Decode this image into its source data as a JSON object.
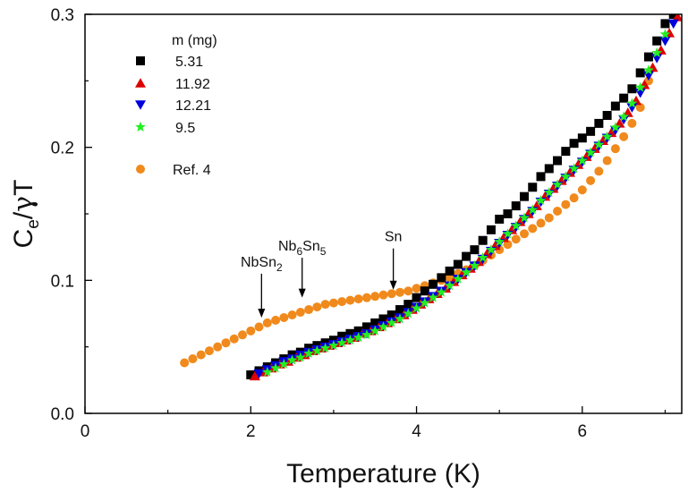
{
  "chart_data": {
    "type": "scatter",
    "xlabel": "Temperature (K)",
    "ylabel": {
      "main": "C",
      "sub": "e",
      "slash": "/",
      "greek": "γ",
      "tail": "T"
    },
    "xlim": [
      0,
      7.2
    ],
    "ylim": [
      0,
      0.3
    ],
    "xticks": [
      0,
      2,
      4,
      6
    ],
    "xtick_labels": [
      "0",
      "2",
      "4",
      "6"
    ],
    "yticks": [
      0,
      0.1,
      0.2,
      0.3
    ],
    "ytick_labels": [
      "0.0",
      "0.1",
      "0.2",
      "0.3"
    ],
    "grid": false,
    "legend_title": "m (mg)",
    "legend_placement": "top-left",
    "series": [
      {
        "name": "5.31",
        "marker": "square",
        "color": "#000000",
        "x": [
          2.0,
          2.1,
          2.2,
          2.3,
          2.4,
          2.5,
          2.6,
          2.7,
          2.8,
          2.9,
          3.0,
          3.1,
          3.2,
          3.3,
          3.4,
          3.5,
          3.6,
          3.7,
          3.8,
          3.9,
          4.0,
          4.1,
          4.2,
          4.3,
          4.4,
          4.5,
          4.6,
          4.7,
          4.8,
          4.9,
          5.0,
          5.1,
          5.2,
          5.3,
          5.4,
          5.5,
          5.6,
          5.7,
          5.8,
          5.9,
          6.0,
          6.1,
          6.2,
          6.3,
          6.4,
          6.5,
          6.6,
          6.7,
          6.8,
          6.9,
          7.0,
          7.1
        ],
        "y": [
          0.029,
          0.032,
          0.035,
          0.038,
          0.041,
          0.044,
          0.046,
          0.049,
          0.051,
          0.053,
          0.055,
          0.058,
          0.06,
          0.062,
          0.065,
          0.068,
          0.071,
          0.074,
          0.078,
          0.082,
          0.087,
          0.092,
          0.097,
          0.102,
          0.107,
          0.112,
          0.118,
          0.123,
          0.13,
          0.138,
          0.146,
          0.15,
          0.156,
          0.163,
          0.17,
          0.178,
          0.184,
          0.19,
          0.197,
          0.203,
          0.207,
          0.212,
          0.218,
          0.224,
          0.231,
          0.237,
          0.244,
          0.256,
          0.268,
          0.28,
          0.293,
          0.3
        ]
      },
      {
        "name": "11.92",
        "marker": "triangle-up",
        "color": "#dd0000",
        "x": [
          2.05,
          2.15,
          2.25,
          2.35,
          2.45,
          2.55,
          2.65,
          2.75,
          2.85,
          2.95,
          3.05,
          3.15,
          3.25,
          3.35,
          3.45,
          3.55,
          3.65,
          3.75,
          3.85,
          3.95,
          4.05,
          4.15,
          4.25,
          4.35,
          4.45,
          4.55,
          4.65,
          4.75,
          4.85,
          4.95,
          5.05,
          5.15,
          5.25,
          5.35,
          5.45,
          5.55,
          5.65,
          5.75,
          5.85,
          5.95,
          6.05,
          6.15,
          6.25,
          6.35,
          6.45,
          6.55,
          6.65,
          6.75,
          6.85,
          6.95,
          7.05,
          7.15
        ],
        "y": [
          0.028,
          0.031,
          0.034,
          0.037,
          0.039,
          0.042,
          0.044,
          0.047,
          0.049,
          0.051,
          0.053,
          0.055,
          0.057,
          0.06,
          0.062,
          0.065,
          0.068,
          0.071,
          0.074,
          0.078,
          0.082,
          0.086,
          0.09,
          0.094,
          0.099,
          0.104,
          0.109,
          0.114,
          0.12,
          0.126,
          0.132,
          0.138,
          0.144,
          0.15,
          0.156,
          0.163,
          0.169,
          0.175,
          0.181,
          0.187,
          0.193,
          0.199,
          0.205,
          0.211,
          0.218,
          0.226,
          0.235,
          0.247,
          0.26,
          0.273,
          0.286,
          0.298
        ]
      },
      {
        "name": "12.21",
        "marker": "triangle-down",
        "color": "#0000dd",
        "x": [
          2.1,
          2.2,
          2.3,
          2.4,
          2.5,
          2.6,
          2.7,
          2.8,
          2.9,
          3.0,
          3.1,
          3.2,
          3.3,
          3.4,
          3.5,
          3.6,
          3.7,
          3.8,
          3.9,
          4.0,
          4.1,
          4.2,
          4.3,
          4.4,
          4.5,
          4.6,
          4.7,
          4.8,
          4.9,
          5.0,
          5.1,
          5.2,
          5.3,
          5.4,
          5.5,
          5.6,
          5.7,
          5.8,
          5.9,
          6.0,
          6.1,
          6.2,
          6.3,
          6.4,
          6.5,
          6.6,
          6.7,
          6.8,
          6.9,
          7.0,
          7.1
        ],
        "y": [
          0.03,
          0.033,
          0.036,
          0.039,
          0.041,
          0.044,
          0.046,
          0.048,
          0.05,
          0.052,
          0.054,
          0.056,
          0.058,
          0.06,
          0.063,
          0.066,
          0.069,
          0.072,
          0.076,
          0.08,
          0.084,
          0.088,
          0.092,
          0.096,
          0.101,
          0.106,
          0.111,
          0.116,
          0.122,
          0.128,
          0.134,
          0.14,
          0.146,
          0.152,
          0.159,
          0.165,
          0.171,
          0.177,
          0.183,
          0.189,
          0.195,
          0.201,
          0.207,
          0.213,
          0.221,
          0.23,
          0.241,
          0.254,
          0.267,
          0.28,
          0.293
        ]
      },
      {
        "name": "9.5",
        "marker": "star",
        "color": "#22ee22",
        "x": [
          2.2,
          2.3,
          2.4,
          2.5,
          2.6,
          2.7,
          2.8,
          2.9,
          3.0,
          3.1,
          3.2,
          3.3,
          3.4,
          3.5,
          3.6,
          3.7,
          3.8,
          3.9,
          4.0,
          4.1,
          4.2,
          4.3,
          4.4,
          4.5,
          4.6,
          4.7,
          4.8,
          4.9,
          5.0,
          5.1,
          5.2,
          5.3,
          5.4,
          5.5,
          5.6,
          5.7,
          5.8,
          5.9,
          6.0,
          6.1,
          6.2,
          6.3,
          6.4,
          6.5,
          6.6,
          6.7,
          6.8,
          6.9,
          7.0
        ],
        "y": [
          0.031,
          0.034,
          0.037,
          0.04,
          0.042,
          0.045,
          0.047,
          0.049,
          0.051,
          0.053,
          0.055,
          0.057,
          0.059,
          0.062,
          0.065,
          0.068,
          0.071,
          0.075,
          0.079,
          0.083,
          0.087,
          0.091,
          0.096,
          0.101,
          0.106,
          0.111,
          0.117,
          0.123,
          0.129,
          0.135,
          0.141,
          0.147,
          0.153,
          0.16,
          0.166,
          0.172,
          0.178,
          0.184,
          0.19,
          0.196,
          0.202,
          0.208,
          0.215,
          0.223,
          0.233,
          0.245,
          0.258,
          0.271,
          0.285
        ]
      },
      {
        "name": "Ref. 4",
        "marker": "circle",
        "color": "#f08a1c",
        "x": [
          1.2,
          1.3,
          1.4,
          1.5,
          1.6,
          1.7,
          1.8,
          1.9,
          2.0,
          2.1,
          2.2,
          2.3,
          2.4,
          2.5,
          2.6,
          2.7,
          2.8,
          2.9,
          3.0,
          3.1,
          3.2,
          3.3,
          3.4,
          3.5,
          3.6,
          3.7,
          3.8,
          3.9,
          4.0,
          4.1,
          4.2,
          4.3,
          4.4,
          4.5,
          4.6,
          4.7,
          4.8,
          4.9,
          5.0,
          5.1,
          5.2,
          5.3,
          5.4,
          5.5,
          5.6,
          5.7,
          5.8,
          5.9,
          6.0,
          6.1,
          6.2,
          6.3,
          6.4,
          6.5,
          6.6,
          6.7,
          6.8
        ],
        "y": [
          0.038,
          0.041,
          0.044,
          0.047,
          0.05,
          0.053,
          0.056,
          0.059,
          0.062,
          0.065,
          0.068,
          0.07,
          0.072,
          0.074,
          0.076,
          0.078,
          0.08,
          0.082,
          0.083,
          0.084,
          0.085,
          0.086,
          0.087,
          0.088,
          0.089,
          0.09,
          0.091,
          0.092,
          0.094,
          0.096,
          0.098,
          0.1,
          0.102,
          0.105,
          0.108,
          0.111,
          0.115,
          0.119,
          0.123,
          0.127,
          0.131,
          0.135,
          0.139,
          0.143,
          0.147,
          0.152,
          0.157,
          0.162,
          0.168,
          0.175,
          0.182,
          0.19,
          0.199,
          0.208,
          0.218,
          0.23,
          0.25
        ]
      }
    ],
    "annotations": [
      {
        "name": "NbSn2",
        "parts": [
          {
            "t": "NbSn",
            "sub": false
          },
          {
            "t": "2",
            "sub": true
          }
        ],
        "arrow_x": 2.13,
        "arrow_y_top": 0.105,
        "arrow_y_tip": 0.072
      },
      {
        "name": "Nb6Sn5",
        "parts": [
          {
            "t": "Nb",
            "sub": false
          },
          {
            "t": "6",
            "sub": true
          },
          {
            "t": "Sn",
            "sub": false
          },
          {
            "t": "5",
            "sub": true
          }
        ],
        "arrow_x": 2.62,
        "arrow_y_top": 0.117,
        "arrow_y_tip": 0.087
      },
      {
        "name": "Sn",
        "parts": [
          {
            "t": "Sn",
            "sub": false
          }
        ],
        "arrow_x": 3.72,
        "arrow_y_top": 0.124,
        "arrow_y_tip": 0.093
      }
    ]
  }
}
